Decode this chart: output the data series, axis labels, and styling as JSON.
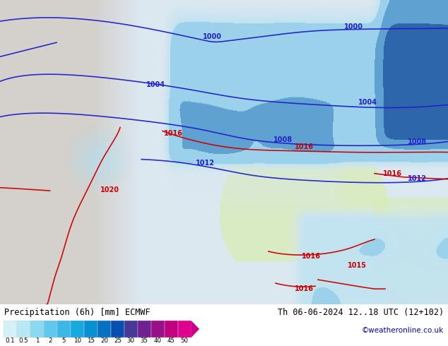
{
  "title_left": "Precipitation (6h) [mm] ECMWF",
  "title_right": "Th 06-06-2024 12..18 UTC (12+102)",
  "credit": "©weatheronline.co.uk",
  "colorbar_levels": [
    0.1,
    0.5,
    1,
    2,
    5,
    10,
    15,
    20,
    25,
    30,
    35,
    40,
    45,
    50
  ],
  "colorbar_colors": [
    "#d4f0f8",
    "#b8e8f4",
    "#8cd8f0",
    "#60c8ec",
    "#3cb8e8",
    "#18a8e0",
    "#0890d0",
    "#0870c0",
    "#0850b0",
    "#483898",
    "#702090",
    "#981088",
    "#c00080",
    "#e00090"
  ],
  "land_color": "#e8e4e0",
  "ocean_color": "#dce8f0",
  "left_gray": "#d4d0cc",
  "precip_light": "#b0dff0",
  "precip_medium": "#80c8e8",
  "precip_dark": "#4090c0",
  "precip_very_dark": "#1050a0",
  "green_land": "#d8edb0",
  "bottom_white": "#ffffff",
  "text_color": "#000000",
  "credit_color": "#0000cc",
  "blue_isobar": "#2020cc",
  "red_isobar": "#cc0000",
  "fig_width": 6.34,
  "fig_height": 4.9,
  "colorbar_arrow_color": "#cc0088"
}
